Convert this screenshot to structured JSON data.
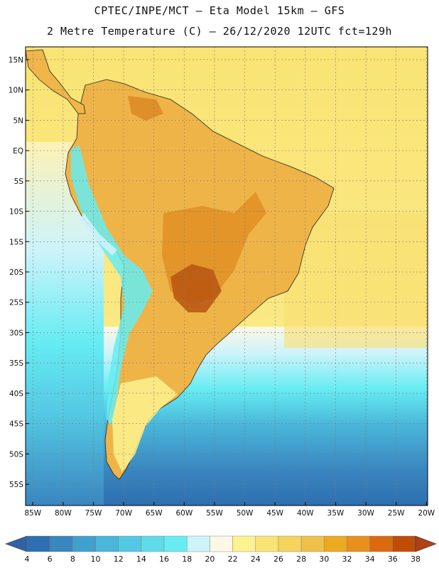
{
  "header": {
    "line1": "CPTEC/INPE/MCT –  Eta Model 15km – GFS",
    "line2": "2 Metre Temperature (C) – 26/12/2020 12UTC fct=129h"
  },
  "map": {
    "latitudes": [
      15,
      10,
      5,
      0,
      -5,
      -10,
      -15,
      -20,
      -25,
      -30,
      -35,
      -40,
      -45,
      -50,
      -55
    ],
    "lat_labels": [
      "15N",
      "10N",
      "5N",
      "EQ",
      "5S",
      "10S",
      "15S",
      "20S",
      "25S",
      "30S",
      "35S",
      "40S",
      "45S",
      "50S",
      "55S"
    ],
    "longitudes": [
      -85,
      -80,
      -75,
      -70,
      -65,
      -60,
      -55,
      -50,
      -45,
      -40,
      -35,
      -30,
      -25,
      -20
    ],
    "lon_labels": [
      "85W",
      "80W",
      "75W",
      "70W",
      "65W",
      "60W",
      "55W",
      "50W",
      "45W",
      "40W",
      "35W",
      "30W",
      "25W",
      "20W"
    ],
    "lat_range": [
      17.1,
      -58.5
    ],
    "lon_range": [
      -86.2,
      -19.8
    ]
  },
  "colorbar": {
    "ticks": [
      "4",
      "6",
      "8",
      "10",
      "12",
      "14",
      "16",
      "18",
      "20",
      "22",
      "24",
      "26",
      "28",
      "30",
      "32",
      "34",
      "36",
      "38"
    ],
    "colors": [
      "#2d6fb0",
      "#3a86bf",
      "#42a0cf",
      "#4ab6da",
      "#54c8e3",
      "#5fdae9",
      "#66ecf2",
      "#cdf3fb",
      "#fdf8e4",
      "#fdf28f",
      "#f9e376",
      "#f5d35c",
      "#efc14a",
      "#ebaa20",
      "#e8901e",
      "#db6a0f",
      "#c04d07"
    ],
    "below_color": "#3262a5",
    "above_color": "#b04015"
  }
}
